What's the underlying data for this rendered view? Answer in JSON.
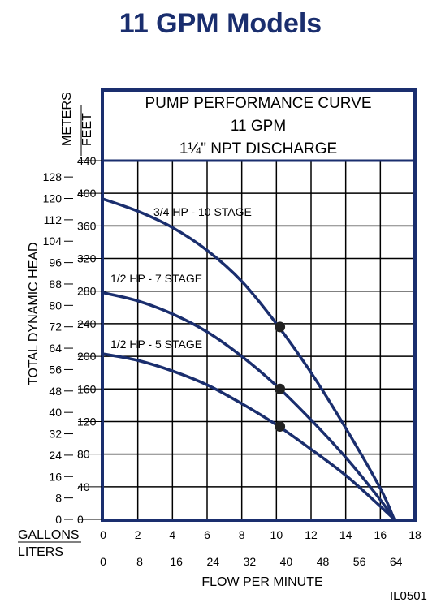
{
  "page_title": "11 GPM Models",
  "figure_code": "IL0501",
  "colors": {
    "title": "#1a2e6e",
    "frame": "#1a2e6e",
    "curves": "#1a2e6e",
    "grid": "#000000",
    "points": "#222222"
  },
  "chart_data": {
    "type": "line",
    "title_lines": [
      "PUMP PERFORMANCE CURVE",
      "11 GPM",
      "1¼\" NPT DISCHARGE"
    ],
    "xlabel": "FLOW PER MINUTE",
    "ylabel": "TOTAL DYNAMIC HEAD",
    "x_axis_gallons": {
      "label": "GALLONS",
      "ticks": [
        0,
        2,
        4,
        6,
        8,
        10,
        12,
        14,
        16,
        18
      ],
      "range": [
        0,
        18
      ]
    },
    "x_axis_liters": {
      "label": "LITERS",
      "ticks": [
        0,
        8,
        16,
        24,
        32,
        40,
        48,
        56,
        64
      ]
    },
    "y_axis_feet": {
      "label": "FEET",
      "ticks": [
        0,
        40,
        80,
        120,
        160,
        200,
        240,
        280,
        320,
        360,
        400,
        440
      ],
      "range": [
        0,
        440
      ]
    },
    "y_axis_meters": {
      "label": "METERS",
      "ticks": [
        0,
        8,
        16,
        24,
        32,
        40,
        48,
        56,
        64,
        72,
        80,
        88,
        96,
        104,
        112,
        120,
        128
      ]
    },
    "grid": true,
    "series": [
      {
        "name": "3/4 HP - 10 STAGE",
        "x": [
          0,
          2,
          4,
          6,
          8,
          10,
          12,
          14,
          16,
          16.8
        ],
        "y": [
          393,
          378,
          358,
          330,
          292,
          240,
          180,
          112,
          38,
          0
        ],
        "marker": {
          "x": 10.2,
          "y": 236
        }
      },
      {
        "name": "1/2 HP - 7 STAGE",
        "x": [
          0,
          2,
          4,
          6,
          8,
          10,
          12,
          14,
          16,
          16.8
        ],
        "y": [
          278,
          268,
          252,
          230,
          200,
          164,
          122,
          76,
          24,
          0
        ],
        "marker": {
          "x": 10.2,
          "y": 160
        }
      },
      {
        "name": "1/2 HP - 5 STAGE",
        "x": [
          0,
          2,
          4,
          6,
          8,
          10,
          12,
          14,
          16,
          16.8
        ],
        "y": [
          203,
          195,
          182,
          165,
          142,
          116,
          86,
          54,
          16,
          0
        ],
        "marker": {
          "x": 10.2,
          "y": 114
        }
      }
    ]
  }
}
